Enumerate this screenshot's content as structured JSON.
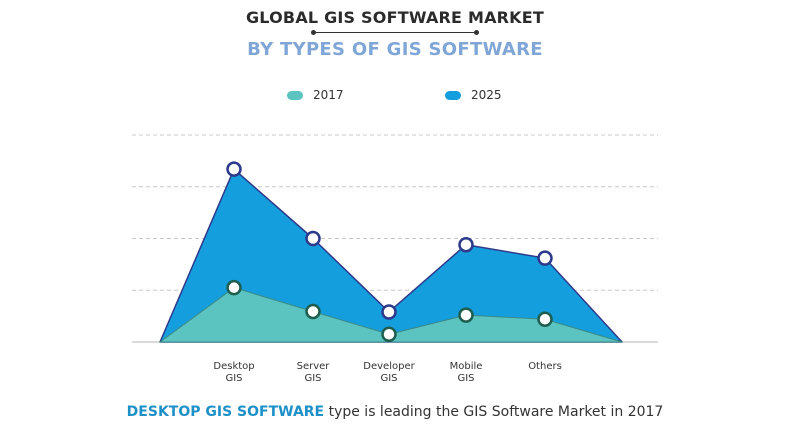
{
  "title": "GLOBAL GIS SOFTWARE MARKET",
  "subtitle": "BY TYPES OF GIS SOFTWARE",
  "footer": {
    "highlight": "DESKTOP GIS SOFTWARE",
    "text": " type is leading the GIS Software Market in 2017"
  },
  "colors": {
    "series_2017_fill": "#5cc4c0",
    "series_2025_fill": "#149ede",
    "outline": "#2d3a8c",
    "marker_2017": "#1d5e4f",
    "marker_2025": "#2d3a8c",
    "gridline": "#c8c8c8",
    "highlight_text": "#1e90c8",
    "subtitle_text": "#7fa6d6"
  },
  "chart_data": {
    "type": "area",
    "title": "GLOBAL GIS SOFTWARE MARKET",
    "subtitle": "BY TYPES OF GIS SOFTWARE",
    "categories": [
      "Desktop\nGIS",
      "Server\nGIS",
      "Developer\nGIS",
      "Mobile\nGIS",
      "Others"
    ],
    "series": [
      {
        "name": "2017",
        "values": [
          1.05,
          0.59,
          0.15,
          0.52,
          0.44
        ],
        "color": "#5cc4c0"
      },
      {
        "name": "2025",
        "values": [
          3.34,
          2.0,
          0.58,
          1.88,
          1.62
        ],
        "color": "#149ede"
      }
    ],
    "ylim": [
      0,
      4
    ],
    "grid": true,
    "legend_position": "top-center",
    "xlabel": "",
    "ylabel": ""
  }
}
